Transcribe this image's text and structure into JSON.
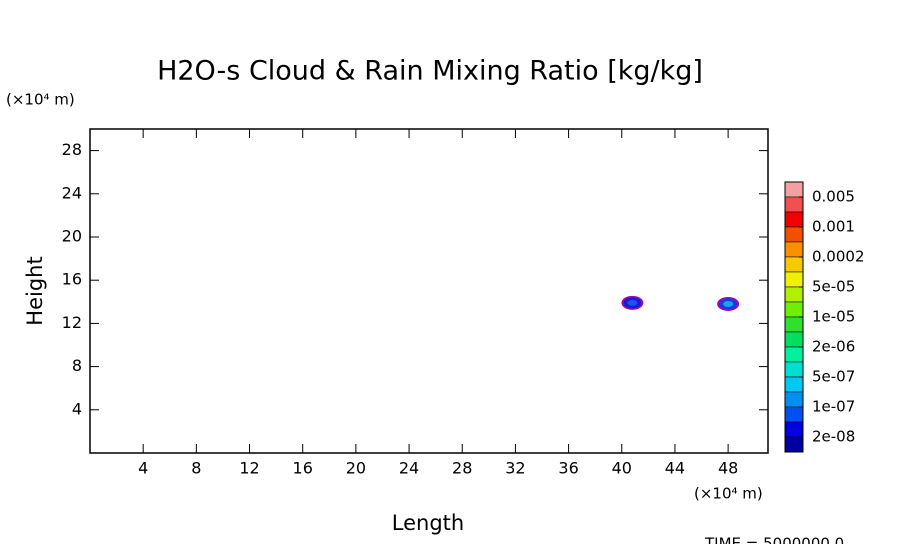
{
  "chart_data": {
    "type": "contour",
    "title": "H2O-s Cloud & Rain Mixing Ratio [kg/kg]",
    "x_label": "Length",
    "y_label": "Height",
    "x_unit": "(×10⁴ m)",
    "y_unit": "(×10⁴ m)",
    "footer": "TIME = 5000000.0",
    "xlim": [
      0,
      51
    ],
    "ylim": [
      0,
      30
    ],
    "xticks": [
      4,
      8,
      12,
      16,
      20,
      24,
      28,
      32,
      36,
      40,
      44,
      48
    ],
    "yticks": [
      4,
      8,
      12,
      16,
      20,
      24,
      28
    ],
    "blobs": [
      {
        "x": 40.8,
        "y": 13.9,
        "colors": [
          "#b000b0",
          "#1020d0",
          "#2050f0"
        ]
      },
      {
        "x": 48.0,
        "y": 13.8,
        "colors": [
          "#b000b0",
          "#1040e0",
          "#20a0f0"
        ]
      }
    ],
    "colorbar": {
      "colors": [
        "#f4a0a0",
        "#f05050",
        "#f00000",
        "#f05000",
        "#f89000",
        "#f8c800",
        "#f0f000",
        "#b0f000",
        "#70f000",
        "#30e030",
        "#00e060",
        "#00f0a0",
        "#00e0d0",
        "#00c8f0",
        "#0090f0",
        "#0050f0",
        "#0000e0",
        "#0000a0"
      ],
      "ticks": [
        0.005,
        0.001,
        0.0002,
        {
          "value": 5e-05,
          "label": "5e-05"
        },
        {
          "value": 1e-05,
          "label": "1e-05"
        },
        {
          "value": 2e-06,
          "label": "2e-06"
        },
        {
          "value": 5e-07,
          "label": "5e-07"
        },
        {
          "value": 1e-07,
          "label": "1e-07"
        },
        {
          "value": 2e-08,
          "label": "2e-08"
        }
      ]
    }
  }
}
